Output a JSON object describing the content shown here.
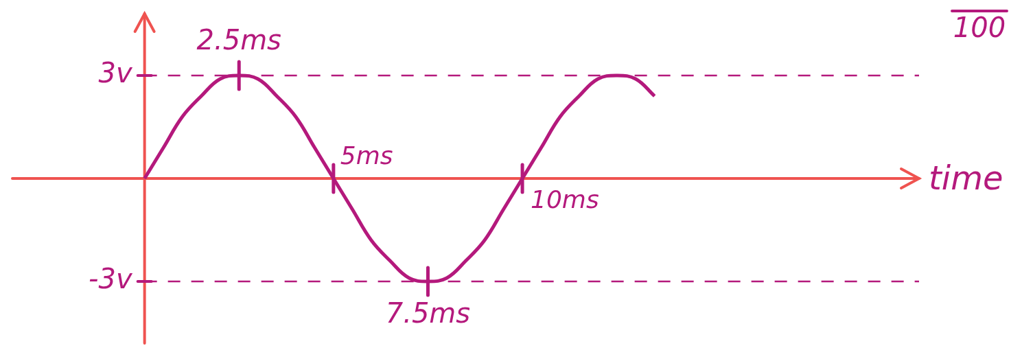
{
  "chart_data": {
    "type": "line",
    "x": [
      0,
      0.5,
      1,
      1.5,
      2,
      2.5,
      3,
      3.5,
      4,
      4.5,
      5,
      5.5,
      6,
      6.5,
      7,
      7.5,
      8,
      8.5,
      9,
      9.5,
      10,
      10.5,
      11,
      11.5,
      12,
      12.5,
      13,
      13.5
    ],
    "values": [
      0,
      0.9,
      1.8,
      2.4,
      2.9,
      3,
      2.9,
      2.4,
      1.8,
      0.9,
      0,
      -0.9,
      -1.8,
      -2.4,
      -2.9,
      -3,
      -2.9,
      -2.4,
      -1.8,
      -0.9,
      0,
      0.9,
      1.8,
      2.4,
      2.9,
      3,
      2.9,
      2.4
    ],
    "color": "#b4197c",
    "xlim": [
      -3.5,
      20.5
    ],
    "ylim": [
      -4.8,
      4.8
    ],
    "xticks": [
      {
        "value": 5,
        "label": "5ms"
      },
      {
        "value": 10,
        "label": "10ms"
      }
    ],
    "yticks": [
      {
        "value": 3,
        "label": "3v"
      },
      {
        "value": -3,
        "label": "-3v"
      }
    ],
    "xlabel": "time",
    "grid": true,
    "line_style": "solid",
    "annotations": [
      {
        "text": "2.5ms",
        "x": 2.5,
        "y": 3
      },
      {
        "text": "7.5ms",
        "x": 7.5,
        "y": -3
      },
      {
        "text": "100"
      }
    ]
  }
}
